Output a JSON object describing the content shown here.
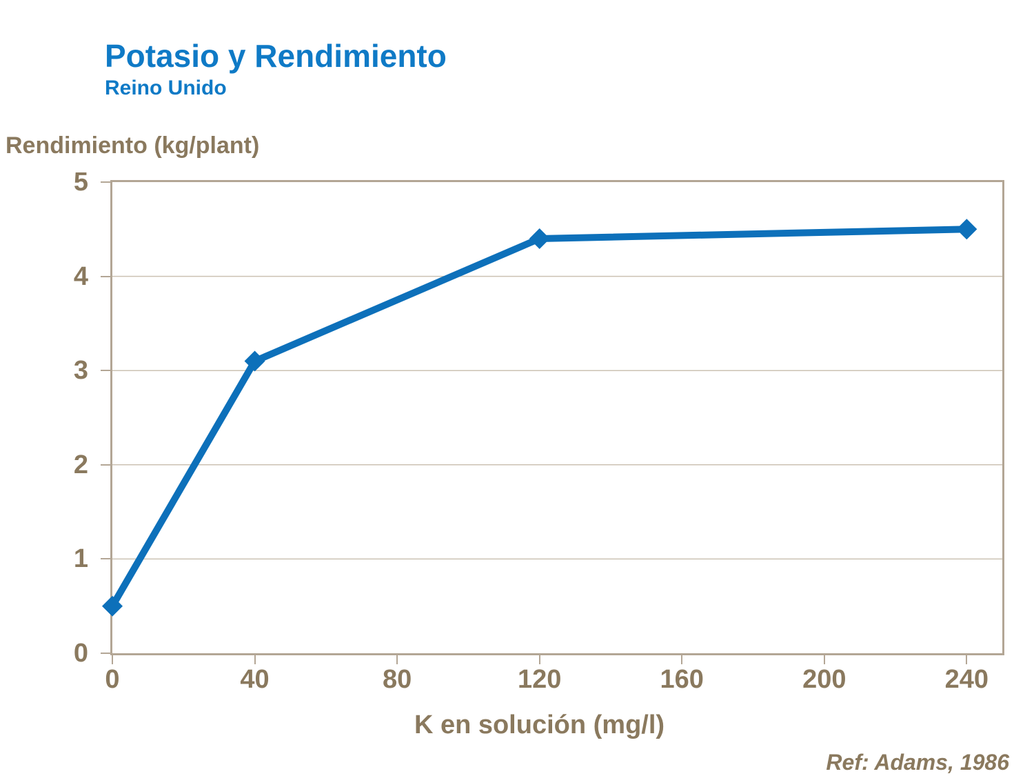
{
  "title": "Potasio y Rendimiento",
  "subtitle": "Reino Unido",
  "ref": "Ref: Adams, 1986",
  "colors": {
    "title_blue": "#0f7ac6",
    "line_blue": "#0d70ba",
    "label_brown": "#8a795e",
    "axis_taupe": "#b3a695",
    "gridline": "#cbc2b3",
    "background": "#ffffff"
  },
  "chart_data": {
    "type": "line",
    "title": "Potasio y Rendimiento",
    "subtitle": "Reino Unido",
    "xlabel": "K en solución (mg/l)",
    "ylabel": "Rendimiento (kg/plant)",
    "x": [
      0,
      40,
      120,
      240
    ],
    "y": [
      0.5,
      3.1,
      4.4,
      4.5
    ],
    "xticks": [
      0,
      40,
      80,
      120,
      160,
      200,
      240
    ],
    "yticks": [
      0,
      1,
      2,
      3,
      4,
      5
    ],
    "xlim": [
      0,
      250
    ],
    "ylim": [
      0,
      5
    ],
    "grid": "horizontal",
    "legend": "none",
    "marker": "diamond",
    "line_color": "#0d70ba",
    "reference": "Ref: Adams, 1986"
  }
}
